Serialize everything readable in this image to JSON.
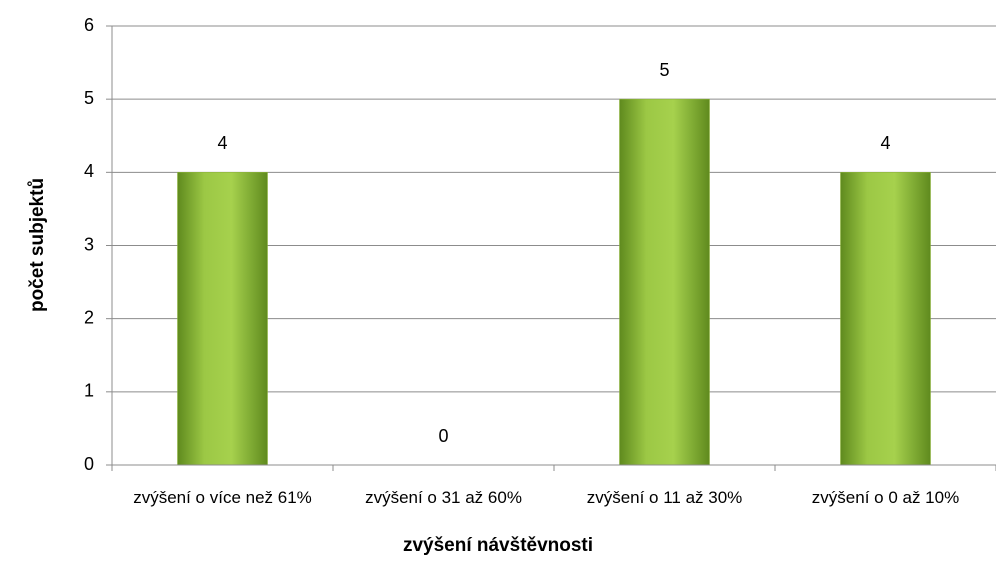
{
  "chart_data": {
    "type": "bar",
    "x_label": "zvýšení návštěvnosti",
    "y_label": "počet subjektů",
    "categories": [
      "zvýšení o více než 61%",
      "zvýšení o 31 až 60%",
      "zvýšení o 11 až 30%",
      "zvýšení o 0 až 10%"
    ],
    "values": [
      4,
      0,
      5,
      4
    ],
    "color": "#8db535",
    "ylim": [
      0,
      6
    ],
    "yticks": [
      0,
      1,
      2,
      3,
      4,
      5,
      6
    ],
    "grid": true
  }
}
